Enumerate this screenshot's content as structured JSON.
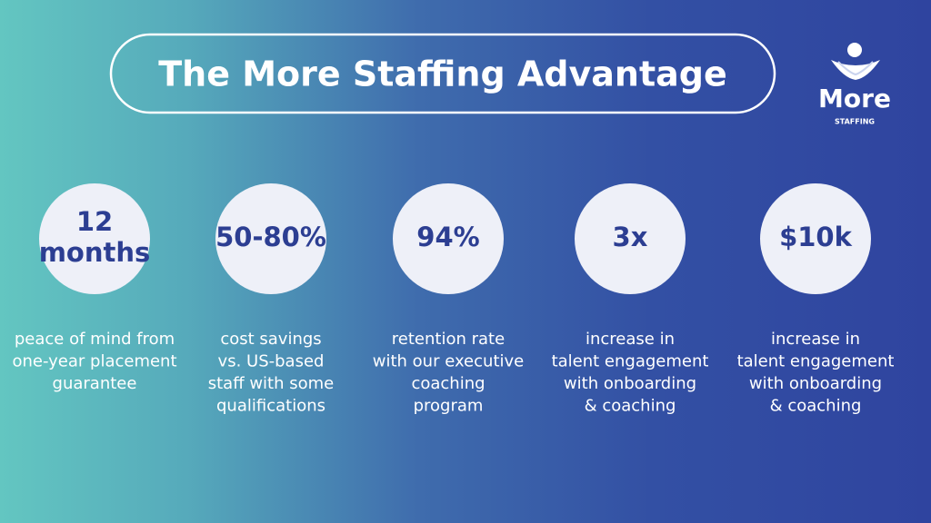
{
  "header": {
    "title": "The More Staffing Advantage"
  },
  "logo": {
    "name": "More",
    "tagline": "STAFFING"
  },
  "stats": [
    {
      "value_lines": [
        "12",
        "months"
      ],
      "description_lines": [
        "peace of mind from",
        "one-year placement",
        "guarantee"
      ]
    },
    {
      "value_lines": [
        "50-80%"
      ],
      "description_lines": [
        "cost savings",
        "vs. US-based",
        "staff with some",
        "qualifications"
      ]
    },
    {
      "value_lines": [
        "94%"
      ],
      "description_lines": [
        "retention rate",
        "with our executive",
        "coaching",
        "program"
      ]
    },
    {
      "value_lines": [
        "3x"
      ],
      "description_lines": [
        "increase in",
        "talent engagement",
        "with onboarding",
        "& coaching"
      ]
    },
    {
      "value_lines": [
        "$10k"
      ],
      "description_lines": [
        "increase in",
        "talent engagement",
        "with onboarding",
        "& coaching"
      ]
    }
  ]
}
